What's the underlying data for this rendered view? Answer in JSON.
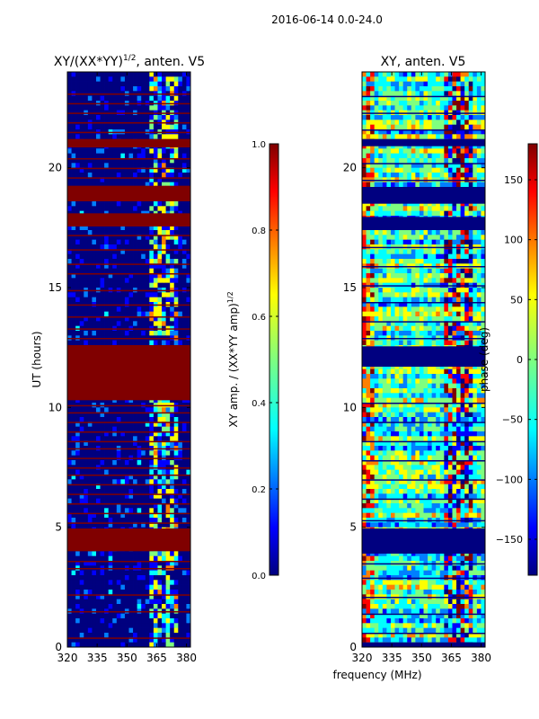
{
  "suptitle": "2016-06-14 0.0-24.0",
  "chart_data": [
    {
      "type": "heatmap",
      "title": "XY/(XX*YY)^{1/2}, anten. V5",
      "title_main": "XY/(XX*YY)",
      "title_sup": "1/2",
      "title_tail": ", anten. V5",
      "xlabel": "",
      "ylabel": "UT (hours)",
      "x_ticks": [
        320,
        335,
        350,
        365,
        380
      ],
      "x_tick_labels": [
        "320",
        "335",
        "350",
        "365",
        "380"
      ],
      "xlim": [
        320,
        382
      ],
      "y_ticks": [
        0,
        5,
        10,
        15,
        20
      ],
      "y_tick_labels": [
        "0",
        "5",
        "10",
        "15",
        "20"
      ],
      "ylim": [
        0,
        24
      ],
      "flagged_bands_hours": [
        [
          4.0,
          4.95
        ],
        [
          10.3,
          12.6
        ],
        [
          17.55,
          18.1
        ],
        [
          18.6,
          19.25
        ],
        [
          20.85,
          21.2
        ]
      ],
      "flag_line_hours": [
        0.4,
        1.5,
        2.2,
        3.3,
        3.6,
        5.2,
        5.6,
        6.0,
        6.4,
        6.8,
        7.2,
        7.5,
        7.9,
        8.3,
        8.6,
        9.0,
        9.4,
        9.8,
        10.1,
        12.9,
        13.3,
        13.8,
        14.3,
        14.9,
        15.6,
        16.0,
        16.6,
        17.2,
        19.6,
        20.0,
        20.4,
        21.5,
        21.9,
        22.3,
        22.7,
        23.1
      ],
      "active_freq_range_mhz": [
        361,
        375
      ]
    },
    {
      "type": "heatmap",
      "title": "XY, anten. V5",
      "xlabel": "frequency (MHz)",
      "ylabel": "",
      "x_ticks": [
        320,
        335,
        350,
        365,
        380
      ],
      "x_tick_labels": [
        "320",
        "335",
        "350",
        "365",
        "380"
      ],
      "xlim": [
        320,
        382
      ],
      "y_ticks": [
        0,
        5,
        10,
        15,
        20
      ],
      "y_tick_labels": [
        "0",
        "5",
        "10",
        "15",
        "20"
      ],
      "ylim": [
        0,
        24
      ],
      "flagged_bands_hours": [
        [
          0.0,
          0.2
        ],
        [
          3.9,
          4.95
        ],
        [
          11.7,
          12.55
        ],
        [
          17.4,
          17.95
        ],
        [
          18.5,
          19.2
        ],
        [
          20.9,
          21.2
        ]
      ],
      "flag_line_hours": [
        0.6,
        1.4,
        2.1,
        2.9,
        3.5,
        5.3,
        6.2,
        7.0,
        7.8,
        8.6,
        9.4,
        10.2,
        12.9,
        13.6,
        14.4,
        15.1,
        15.9,
        16.7,
        19.5,
        20.2,
        21.6,
        22.3,
        23.0
      ]
    }
  ],
  "colorbars": [
    {
      "label": "XY amp. / (XX*YY amp)^{1/2}",
      "label_main": "XY amp. / (XX*YY amp)",
      "label_sup": "1/2",
      "range": [
        0.0,
        1.0
      ],
      "ticks": [
        0.0,
        0.2,
        0.4,
        0.6,
        0.8,
        1.0
      ],
      "tick_labels": [
        "0.0",
        "0.2",
        "0.4",
        "0.6",
        "0.8",
        "1.0"
      ]
    },
    {
      "label": "phase (deg)",
      "range": [
        -180,
        180
      ],
      "ticks": [
        -150,
        -100,
        -50,
        0,
        50,
        100,
        150
      ],
      "tick_labels": [
        "−150",
        "−100",
        "−50",
        "0",
        "50",
        "100",
        "150"
      ]
    }
  ],
  "colors": {
    "jet": [
      "#00007f",
      "#0000ff",
      "#007fff",
      "#00ffff",
      "#7fff7f",
      "#ffff00",
      "#ff7f00",
      "#ff0000",
      "#7f0000"
    ],
    "flag": "#800000",
    "flag_blue": "#000080"
  }
}
